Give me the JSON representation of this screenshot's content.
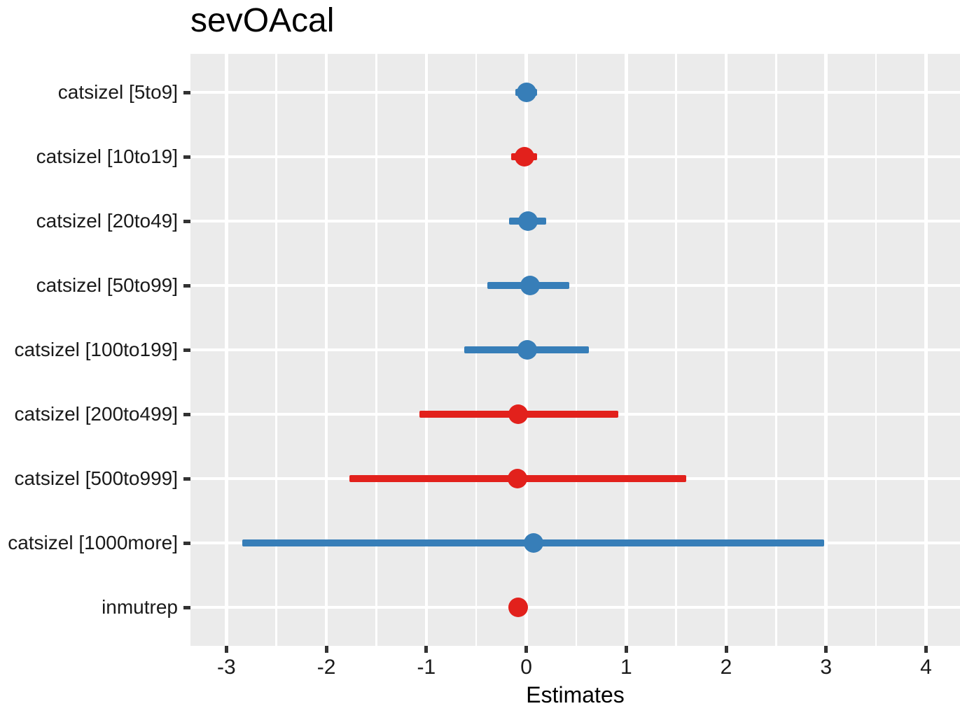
{
  "title": "sevOAcal",
  "chart_data": {
    "type": "scatter",
    "subtype": "forest-coefficient-plot",
    "title": "sevOAcal",
    "xlabel": "Estimates",
    "ylabel": "",
    "xlim": [
      -3.36,
      4.34
    ],
    "x_ticks": [
      -3,
      -2,
      -1,
      0,
      1,
      2,
      3,
      4
    ],
    "grid": "major-and-minor-vertical, major-horizontal, white on grey panel",
    "legend_position": "none",
    "panel_background": "#EBEBEB",
    "colors": {
      "blue": "#377EB8",
      "red": "#E2211C"
    },
    "categories": [
      "catsizel [5to9]",
      "catsizel [10to19]",
      "catsizel [20to49]",
      "catsizel [50to99]",
      "catsizel [100to199]",
      "catsizel [200to499]",
      "catsizel [500to999]",
      "catsizel [1000more]",
      "inmutrep"
    ],
    "points": [
      {
        "label": "catsizel [5to9]",
        "estimate": 0.0,
        "ci": [
          -0.11,
          0.11
        ],
        "color": "blue"
      },
      {
        "label": "catsizel [10to19]",
        "estimate": -0.02,
        "ci": [
          -0.15,
          0.11
        ],
        "color": "red"
      },
      {
        "label": "catsizel [20to49]",
        "estimate": 0.02,
        "ci": [
          -0.17,
          0.2
        ],
        "color": "blue"
      },
      {
        "label": "catsizel [50to99]",
        "estimate": 0.04,
        "ci": [
          -0.39,
          0.43
        ],
        "color": "blue"
      },
      {
        "label": "catsizel [100to199]",
        "estimate": 0.01,
        "ci": [
          -0.62,
          0.63
        ],
        "color": "blue"
      },
      {
        "label": "catsizel [200to499]",
        "estimate": -0.08,
        "ci": [
          -1.07,
          0.92
        ],
        "color": "red"
      },
      {
        "label": "catsizel [500to999]",
        "estimate": -0.09,
        "ci": [
          -1.77,
          1.6
        ],
        "color": "red"
      },
      {
        "label": "catsizel [1000more]",
        "estimate": 0.07,
        "ci": [
          -2.84,
          2.98
        ],
        "color": "blue"
      },
      {
        "label": "inmutrep",
        "estimate": -0.08,
        "ci": [
          -0.08,
          -0.08
        ],
        "color": "red"
      }
    ]
  }
}
